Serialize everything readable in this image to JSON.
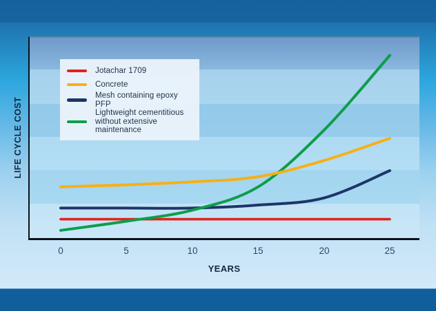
{
  "page": {
    "background_top_band_color": "#15619e",
    "background_bottom_band_color": "#115e9a",
    "background_mid_colors": [
      "#2da7de",
      "#9cd1ef",
      "#d2eafa"
    ],
    "plot_band_colors": [
      "#7ba7d2",
      "#a8d3ed",
      "#95caea",
      "#b0dbf3",
      "#a5d6f0",
      "#c5e5f7"
    ]
  },
  "y_axis": {
    "label": "LIFE CYCLE COST"
  },
  "x_axis": {
    "label": "YEARS",
    "ticks": [
      "0",
      "5",
      "10",
      "15",
      "20",
      "25"
    ]
  },
  "legend": {
    "items": [
      {
        "label": "Jotachar 1709",
        "color": "#e2231c"
      },
      {
        "label": "Concrete",
        "color": "#f7b015"
      },
      {
        "label": "Mesh containing epoxy PFP",
        "color": "#1d3568"
      },
      {
        "label": "Lightweight cementitious\nwithout extensive maintenance",
        "color": "#0e9d4a"
      }
    ]
  },
  "chart_data": {
    "type": "line",
    "title": "",
    "xlabel": "YEARS",
    "ylabel": "LIFE CYCLE COST",
    "x_ticks": [
      0,
      5,
      10,
      15,
      20,
      25
    ],
    "xlim": [
      0,
      25
    ],
    "ylim": [
      0,
      100
    ],
    "y_axis_note": "no numeric scale shown; values are relative life cycle cost estimated from pixel positions",
    "grid": false,
    "legend_position": "top-left-inside",
    "x": [
      0,
      5,
      10,
      15,
      20,
      25
    ],
    "series": [
      {
        "name": "Jotachar 1709",
        "color": "#e2231c",
        "stroke_width": 3.6,
        "values": [
          10,
          10,
          10,
          10,
          10,
          10
        ]
      },
      {
        "name": "Concrete",
        "color": "#f7b015",
        "stroke_width": 4,
        "values": [
          26,
          27,
          28.5,
          31,
          39,
          50
        ]
      },
      {
        "name": "Mesh containing epoxy PFP",
        "color": "#1d3568",
        "stroke_width": 4,
        "values": [
          15.5,
          15.5,
          15.5,
          17,
          20.5,
          34
        ]
      },
      {
        "name": "Lightweight cementitious without extensive maintenance",
        "color": "#0e9d4a",
        "stroke_width": 4,
        "values": [
          4.5,
          9,
          14.5,
          26,
          54,
          91
        ]
      }
    ],
    "draw_order": [
      0,
      2,
      3,
      1
    ]
  }
}
